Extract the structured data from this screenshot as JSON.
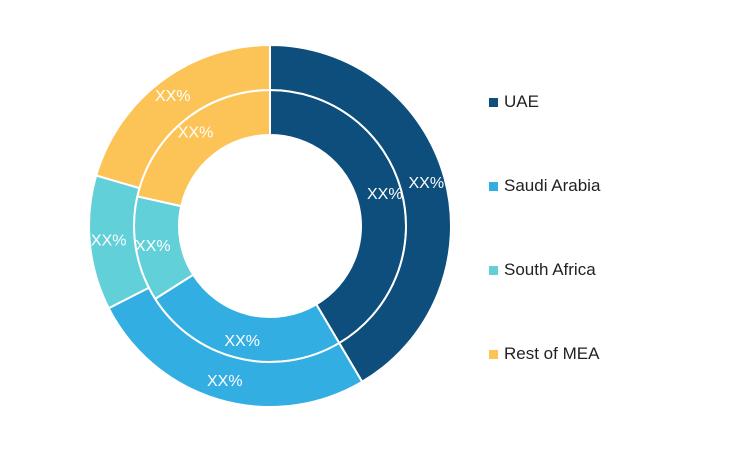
{
  "chart_data": {
    "type": "donut",
    "rings": [
      {
        "name": "",
        "slices": [
          {
            "category": "UAE",
            "share": 41.5,
            "label": "XX%"
          },
          {
            "category": "Saudi Arabia",
            "share": 24.5,
            "label": "XX%"
          },
          {
            "category": "South Africa",
            "share": 12.5,
            "label": "XX%"
          },
          {
            "category": "Rest of MEA",
            "share": 21.5,
            "label": "XX%"
          }
        ]
      },
      {
        "name": "",
        "slices": [
          {
            "category": "UAE",
            "share": 41.5,
            "label": "XX%"
          },
          {
            "category": "Saudi Arabia",
            "share": 26.0,
            "label": "XX%"
          },
          {
            "category": "South Africa",
            "share": 12.0,
            "label": "XX%"
          },
          {
            "category": "Rest of MEA",
            "share": 20.5,
            "label": "XX%"
          }
        ]
      }
    ],
    "legend": {
      "position": "right",
      "items": [
        "UAE",
        "Saudi Arabia",
        "South Africa",
        "Rest of MEA"
      ]
    },
    "colors": {
      "UAE": "#0E4E7C",
      "Saudi Arabia": "#33AEE3",
      "South Africa": "#62D0D8",
      "Rest of MEA": "#FCC457"
    }
  }
}
